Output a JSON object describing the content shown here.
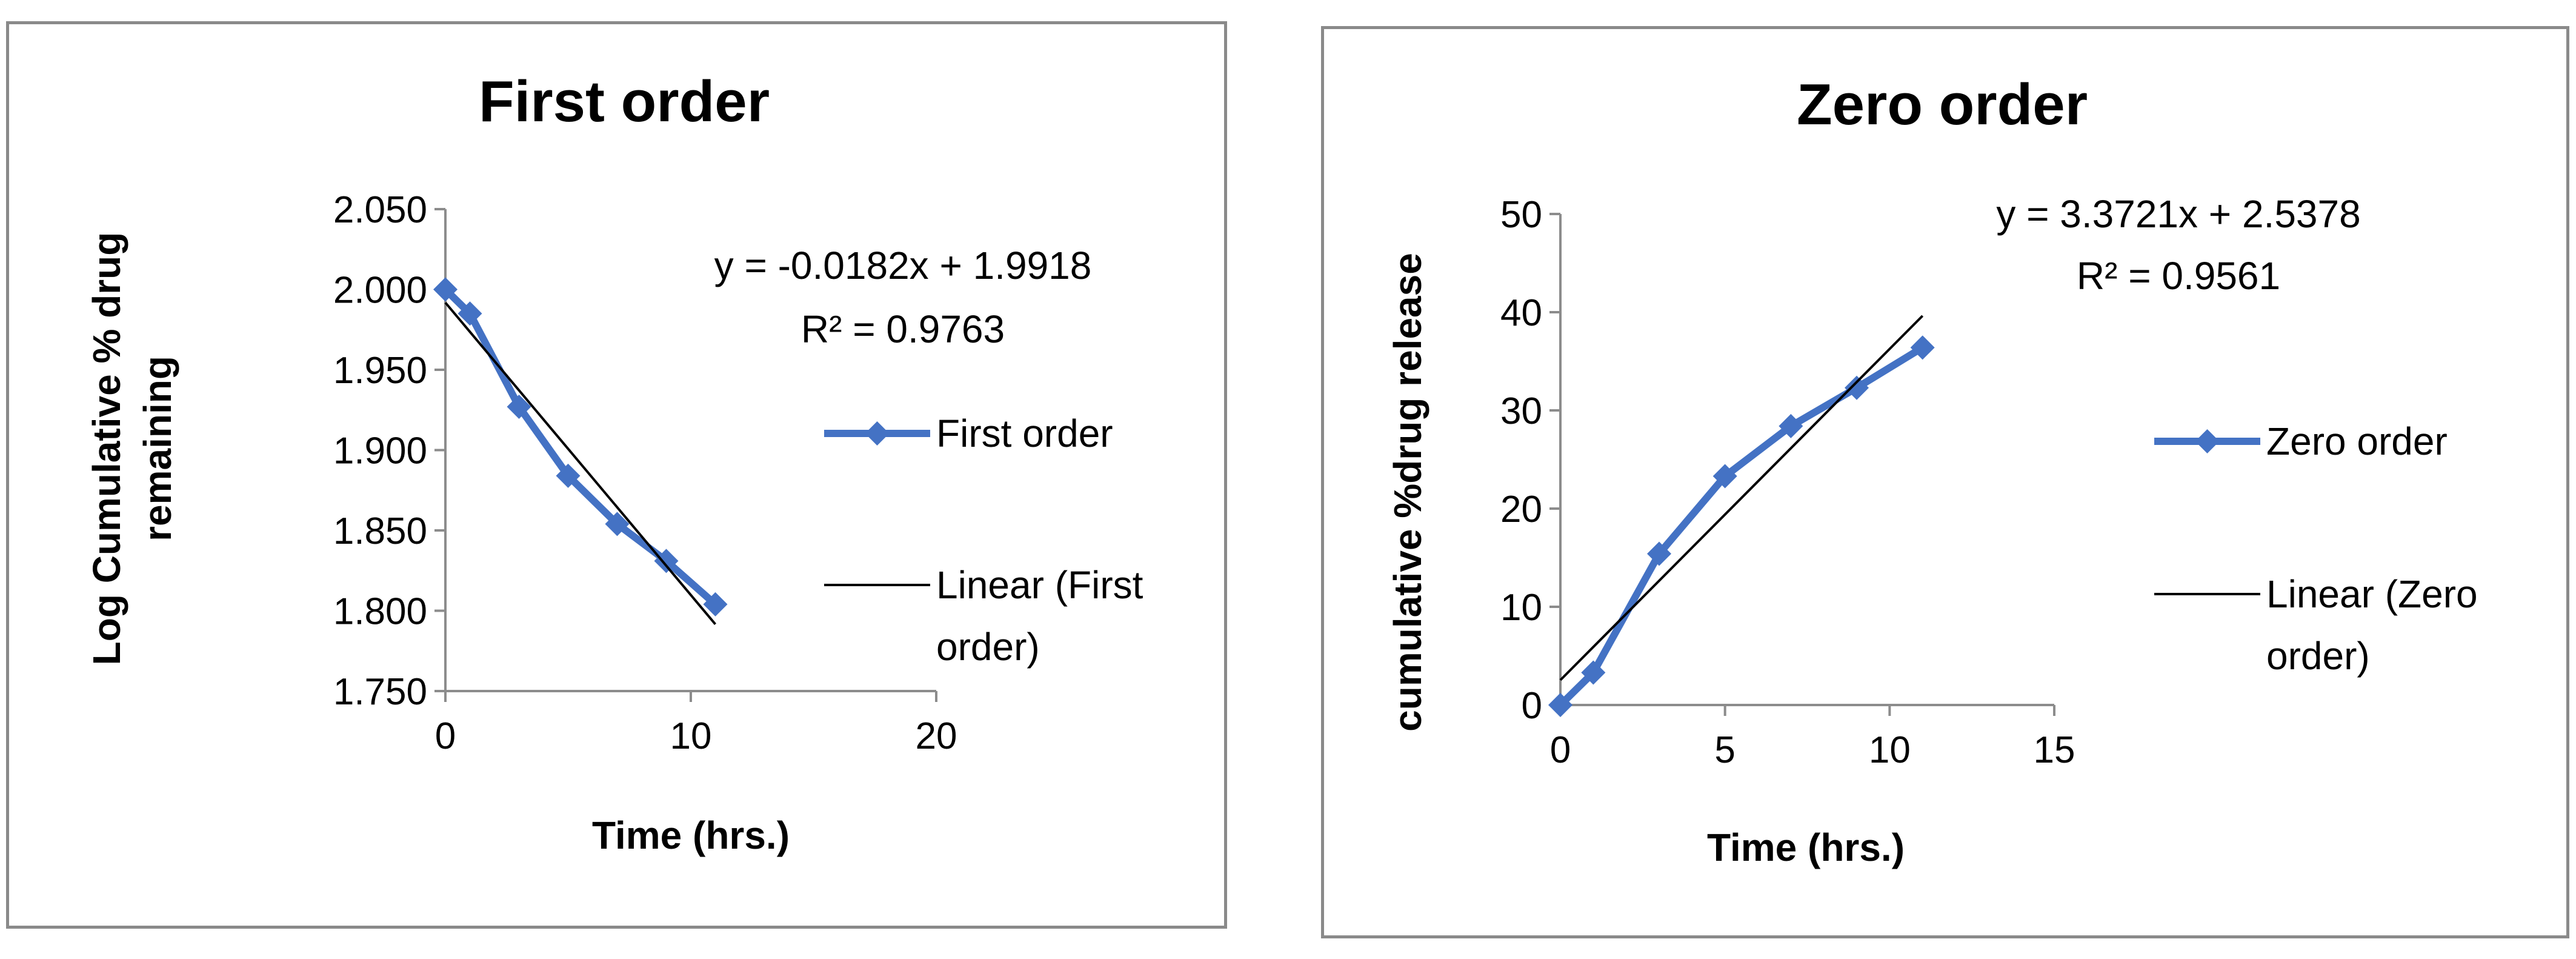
{
  "chart_data": [
    {
      "type": "scatter",
      "title": "First order",
      "xlabel": "Time (hrs.)",
      "ylabel": [
        "Log Cumulative % drug",
        "remaining"
      ],
      "xlim": [
        0,
        20
      ],
      "ylim": [
        1.75,
        2.05
      ],
      "xticks": [
        "0",
        "10",
        "20"
      ],
      "yticks": [
        "1.750",
        "1.800",
        "1.850",
        "1.900",
        "1.950",
        "2.000",
        "2.050"
      ],
      "grid": false,
      "legend_position": "right",
      "series": [
        {
          "name": "First order",
          "style": "line-markers",
          "color": "#4472C4",
          "marker": "diamond",
          "x": [
            0,
            1,
            3,
            5,
            7,
            9,
            11
          ],
          "y": [
            2.0,
            1.985,
            1.927,
            1.884,
            1.854,
            1.831,
            1.804
          ]
        },
        {
          "name": "Linear (First order)",
          "style": "trendline",
          "color": "#000000",
          "slope": -0.0182,
          "intercept": 1.9918,
          "x_range": [
            0,
            11
          ]
        }
      ],
      "legend": [
        "First order",
        [
          "Linear (First",
          "order)"
        ]
      ],
      "annotations": [
        "y = -0.0182x + 1.9918",
        "R² = 0.9763"
      ]
    },
    {
      "type": "scatter",
      "title": "Zero order",
      "xlabel": "Time (hrs.)",
      "ylabel": [
        "cumulative %drug release"
      ],
      "xlim": [
        0,
        15
      ],
      "ylim": [
        0,
        50
      ],
      "xticks": [
        "0",
        "5",
        "10",
        "15"
      ],
      "yticks": [
        "0",
        "10",
        "20",
        "30",
        "40",
        "50"
      ],
      "grid": false,
      "legend_position": "right",
      "series": [
        {
          "name": "Zero order",
          "style": "line-markers",
          "color": "#4472C4",
          "marker": "diamond",
          "x": [
            0,
            1,
            3,
            5,
            7,
            9,
            11
          ],
          "y": [
            0,
            3.3,
            15.4,
            23.3,
            28.4,
            32.3,
            36.4
          ]
        },
        {
          "name": "Linear (Zero order)",
          "style": "trendline",
          "color": "#000000",
          "slope": 3.3721,
          "intercept": 2.5378,
          "x_range": [
            0,
            11
          ]
        }
      ],
      "legend": [
        "Zero order",
        [
          "Linear (Zero",
          "order)"
        ]
      ],
      "annotations": [
        "y = 3.3721x + 2.5378",
        "R² = 0.9561"
      ]
    }
  ]
}
